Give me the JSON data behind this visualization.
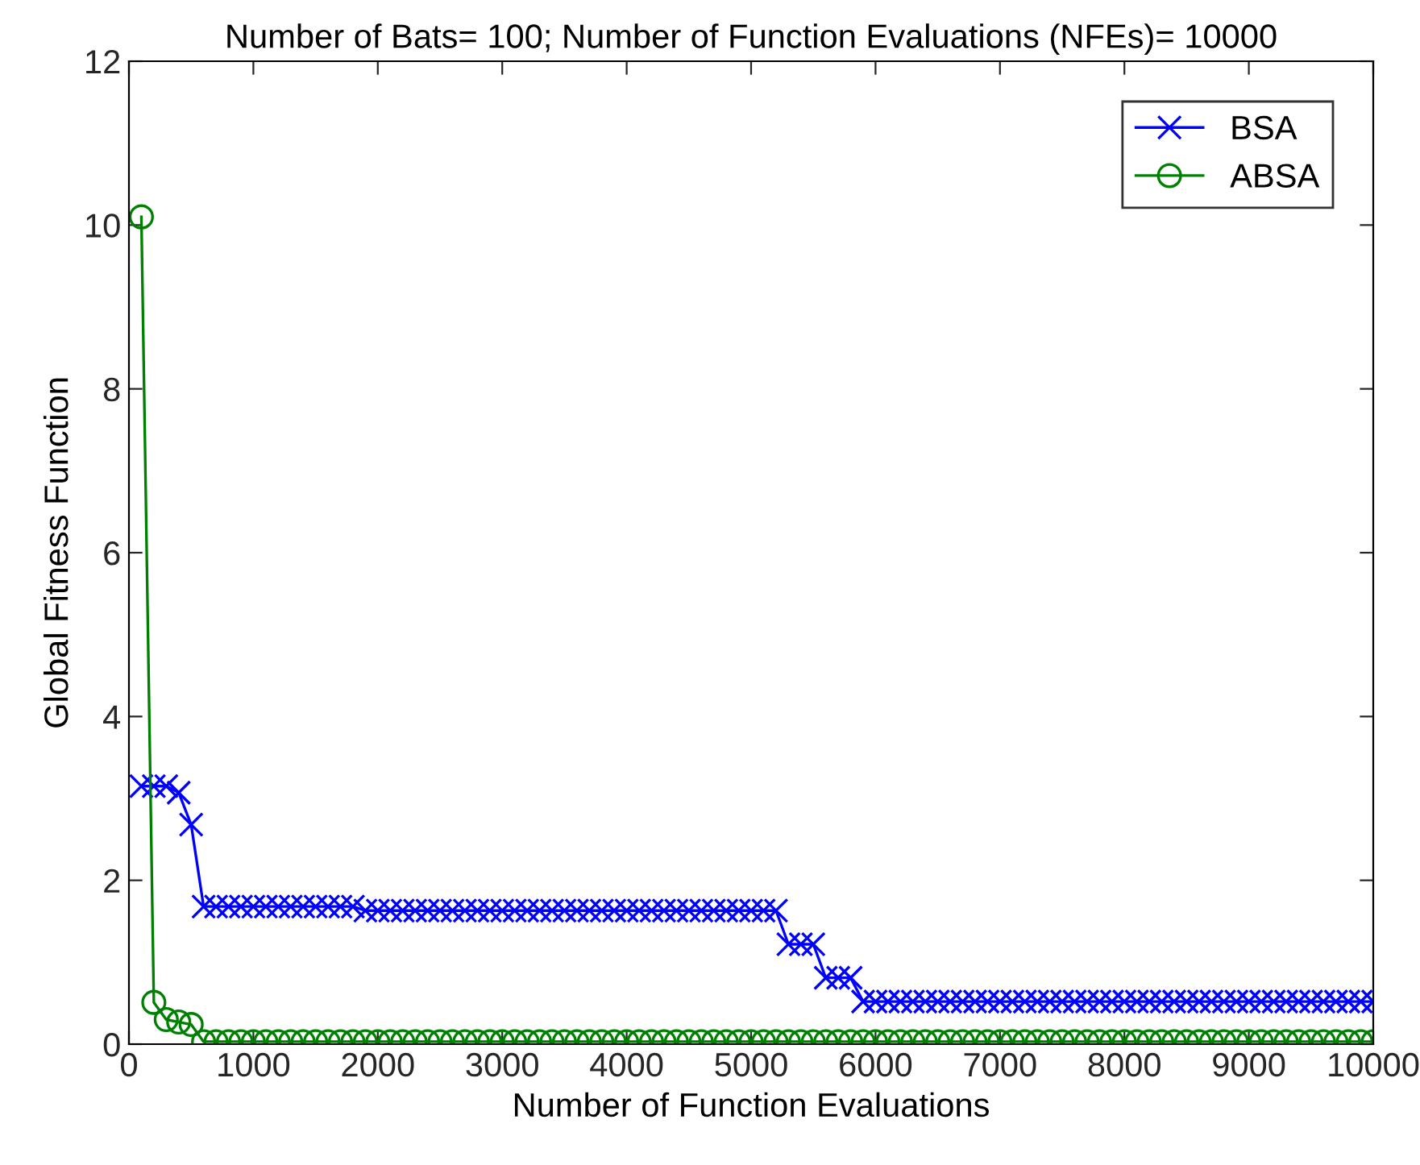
{
  "chart_data": {
    "type": "line",
    "title": "Number of Bats= 100; Number of Function Evaluations (NFEs)= 10000",
    "xlabel": "Number of Function Evaluations",
    "ylabel": "Global Fitness Function",
    "x": [
      100,
      200,
      300,
      400,
      500,
      600,
      700,
      800,
      900,
      1000,
      1100,
      1200,
      1300,
      1400,
      1500,
      1600,
      1700,
      1800,
      1900,
      2000,
      2100,
      2200,
      2300,
      2400,
      2500,
      2600,
      2700,
      2800,
      2900,
      3000,
      3100,
      3200,
      3300,
      3400,
      3500,
      3600,
      3700,
      3800,
      3900,
      4000,
      4100,
      4200,
      4300,
      4400,
      4500,
      4600,
      4700,
      4800,
      4900,
      5000,
      5100,
      5200,
      5300,
      5400,
      5500,
      5600,
      5700,
      5800,
      5900,
      6000,
      6100,
      6200,
      6300,
      6400,
      6500,
      6600,
      6700,
      6800,
      6900,
      7000,
      7100,
      7200,
      7300,
      7400,
      7500,
      7600,
      7700,
      7800,
      7900,
      8000,
      8100,
      8200,
      8300,
      8400,
      8500,
      8600,
      8700,
      8800,
      8900,
      9000,
      9100,
      9200,
      9300,
      9400,
      9500,
      9600,
      9700,
      9800,
      9900,
      10000
    ],
    "series": [
      {
        "name": "BSA",
        "color": "#0000ff",
        "marker": "cross",
        "values": [
          3.15,
          3.15,
          3.15,
          3.07,
          2.68,
          1.68,
          1.68,
          1.68,
          1.68,
          1.68,
          1.68,
          1.68,
          1.68,
          1.68,
          1.68,
          1.68,
          1.68,
          1.68,
          1.63,
          1.63,
          1.63,
          1.63,
          1.63,
          1.63,
          1.63,
          1.63,
          1.63,
          1.63,
          1.63,
          1.63,
          1.63,
          1.63,
          1.63,
          1.63,
          1.63,
          1.63,
          1.63,
          1.63,
          1.63,
          1.63,
          1.63,
          1.63,
          1.63,
          1.63,
          1.63,
          1.63,
          1.63,
          1.63,
          1.63,
          1.63,
          1.63,
          1.63,
          1.22,
          1.22,
          1.22,
          0.81,
          0.81,
          0.81,
          0.52,
          0.52,
          0.52,
          0.52,
          0.52,
          0.52,
          0.52,
          0.52,
          0.52,
          0.52,
          0.52,
          0.52,
          0.52,
          0.52,
          0.52,
          0.52,
          0.52,
          0.52,
          0.52,
          0.52,
          0.52,
          0.52,
          0.52,
          0.52,
          0.52,
          0.52,
          0.52,
          0.52,
          0.52,
          0.52,
          0.52,
          0.52,
          0.52,
          0.52,
          0.52,
          0.52,
          0.52,
          0.52,
          0.52,
          0.52,
          0.52,
          0.52
        ]
      },
      {
        "name": "ABSA",
        "color": "#008000",
        "marker": "circle",
        "values": [
          10.1,
          0.51,
          0.3,
          0.27,
          0.24,
          0.03,
          0.03,
          0.03,
          0.03,
          0.03,
          0.03,
          0.03,
          0.03,
          0.03,
          0.03,
          0.03,
          0.03,
          0.03,
          0.03,
          0.03,
          0.03,
          0.03,
          0.03,
          0.03,
          0.03,
          0.03,
          0.03,
          0.03,
          0.03,
          0.03,
          0.03,
          0.03,
          0.03,
          0.03,
          0.03,
          0.03,
          0.03,
          0.03,
          0.03,
          0.03,
          0.03,
          0.03,
          0.03,
          0.03,
          0.03,
          0.03,
          0.03,
          0.03,
          0.03,
          0.03,
          0.03,
          0.03,
          0.03,
          0.03,
          0.03,
          0.03,
          0.03,
          0.03,
          0.03,
          0.03,
          0.03,
          0.03,
          0.03,
          0.03,
          0.03,
          0.03,
          0.03,
          0.03,
          0.03,
          0.03,
          0.03,
          0.03,
          0.03,
          0.03,
          0.03,
          0.03,
          0.03,
          0.03,
          0.03,
          0.03,
          0.03,
          0.03,
          0.03,
          0.03,
          0.03,
          0.03,
          0.03,
          0.03,
          0.03,
          0.03,
          0.03,
          0.03,
          0.03,
          0.03,
          0.03,
          0.03,
          0.03,
          0.03,
          0.03,
          0.03
        ]
      }
    ],
    "xlim": [
      0,
      10000
    ],
    "xticks": [
      0,
      1000,
      2000,
      3000,
      4000,
      5000,
      6000,
      7000,
      8000,
      9000,
      10000
    ],
    "ylim": [
      0,
      12
    ],
    "yticks": [
      0,
      2,
      4,
      6,
      8,
      10,
      12
    ],
    "grid": false,
    "legend": "top right",
    "line_style": "solid"
  }
}
